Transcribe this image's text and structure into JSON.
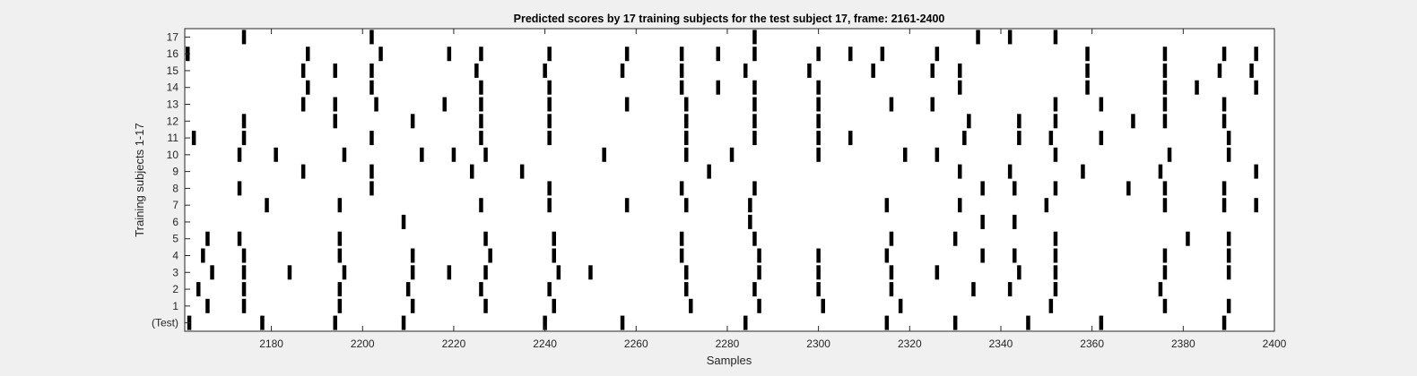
{
  "chart_data": {
    "type": "raster",
    "title": "Predicted scores by 17 training subjects for the test subject 17, frame: 2161-2400",
    "xlabel": "Samples",
    "ylabel": "Training subjects 1-17",
    "xlim": [
      2161,
      2400
    ],
    "xticks": [
      2180,
      2200,
      2220,
      2240,
      2260,
      2280,
      2300,
      2320,
      2340,
      2360,
      2380,
      2400
    ],
    "rows": [
      "(Test)",
      "1",
      "2",
      "3",
      "4",
      "5",
      "6",
      "7",
      "8",
      "9",
      "10",
      "11",
      "12",
      "13",
      "14",
      "15",
      "16",
      "17"
    ],
    "grid": false,
    "legend": "none",
    "mark_color": "#000000",
    "series": [
      {
        "values": [
          2162,
          2178,
          2194,
          2209,
          2240,
          2257,
          2284,
          2315,
          2330,
          2346,
          2362,
          2389
        ]
      },
      {
        "values": [
          2166,
          2174,
          2195,
          2211,
          2227,
          2242,
          2272,
          2287,
          2301,
          2318,
          2351,
          2376,
          2390
        ]
      },
      {
        "values": [
          2164,
          2174,
          2195,
          2210,
          2226,
          2241,
          2271,
          2286,
          2300,
          2316,
          2334,
          2342,
          2352,
          2375
        ]
      },
      {
        "values": [
          2167,
          2174,
          2184,
          2196,
          2211,
          2219,
          2227,
          2243,
          2250,
          2271,
          2287,
          2300,
          2316,
          2326,
          2344,
          2352,
          2376,
          2390
        ]
      },
      {
        "values": [
          2165,
          2174,
          2195,
          2211,
          2228,
          2242,
          2270,
          2287,
          2300,
          2315,
          2336,
          2343,
          2352,
          2376,
          2390
        ]
      },
      {
        "values": [
          2166,
          2173,
          2195,
          2227,
          2242,
          2270,
          2286,
          2316,
          2330,
          2352,
          2381,
          2390
        ]
      },
      {
        "values": [
          2209,
          2285,
          2336,
          2343
        ]
      },
      {
        "values": [
          2179,
          2195,
          2226,
          2241,
          2258,
          2271,
          2285,
          2315,
          2331,
          2350,
          2376,
          2389,
          2396
        ]
      },
      {
        "values": [
          2173,
          2202,
          2241,
          2270,
          2286,
          2336,
          2343,
          2352,
          2368,
          2376,
          2389
        ]
      },
      {
        "values": [
          2187,
          2202,
          2224,
          2235,
          2276,
          2331,
          2342,
          2358,
          2375,
          2396
        ]
      },
      {
        "values": [
          2173,
          2181,
          2196,
          2213,
          2220,
          2227,
          2253,
          2271,
          2281,
          2300,
          2319,
          2326,
          2352,
          2377,
          2390
        ]
      },
      {
        "values": [
          2163,
          2174,
          2202,
          2226,
          2241,
          2271,
          2286,
          2300,
          2307,
          2332,
          2344,
          2351,
          2362,
          2390
        ]
      },
      {
        "values": [
          2174,
          2194,
          2211,
          2226,
          2241,
          2271,
          2286,
          2300,
          2333,
          2344,
          2352,
          2369,
          2376,
          2389
        ]
      },
      {
        "values": [
          2187,
          2194,
          2203,
          2218,
          2226,
          2241,
          2258,
          2271,
          2286,
          2300,
          2316,
          2325,
          2352,
          2362,
          2376,
          2389
        ]
      },
      {
        "values": [
          2188,
          2202,
          2226,
          2241,
          2270,
          2278,
          2286,
          2300,
          2331,
          2359,
          2376,
          2383,
          2396
        ]
      },
      {
        "values": [
          2187,
          2194,
          2202,
          2225,
          2240,
          2257,
          2270,
          2284,
          2298,
          2312,
          2325,
          2331,
          2359,
          2376,
          2388,
          2395
        ]
      },
      {
        "values": [
          2161,
          2188,
          2204,
          2219,
          2226,
          2241,
          2258,
          2270,
          2278,
          2286,
          2300,
          2307,
          2314,
          2326,
          2359,
          2376,
          2389,
          2396
        ]
      },
      {
        "values": [
          2174,
          2202,
          2286,
          2335,
          2342,
          2352
        ]
      }
    ]
  }
}
